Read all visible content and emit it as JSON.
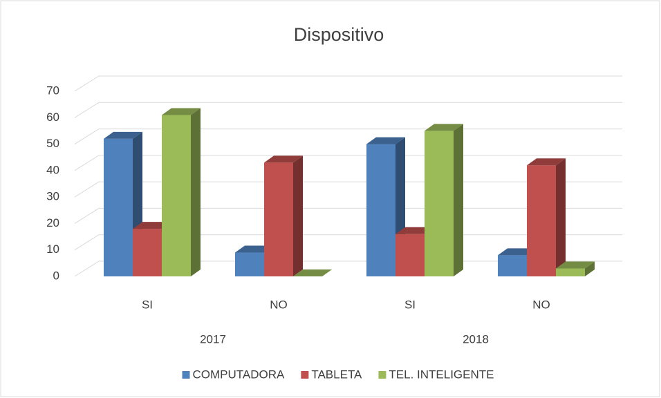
{
  "chart_data": {
    "type": "bar3d",
    "title": "Dispositivo",
    "categories": [
      "SI",
      "NO",
      "SI",
      "NO"
    ],
    "groups": [
      "2017",
      "2018"
    ],
    "series": [
      {
        "name": "COMPUTADORA",
        "color": "#4f81bd",
        "values": [
          52,
          9,
          50,
          8
        ]
      },
      {
        "name": "TABLETA",
        "color": "#c0504d",
        "values": [
          18,
          43,
          16,
          42
        ]
      },
      {
        "name": "TEL. INTELIGENTE",
        "color": "#9bbb59",
        "values": [
          61,
          0,
          55,
          3
        ]
      }
    ],
    "ylim": [
      0,
      70
    ],
    "yticks": [
      0,
      10,
      20,
      30,
      40,
      50,
      60,
      70
    ],
    "grid": true,
    "legend": "bottom"
  }
}
